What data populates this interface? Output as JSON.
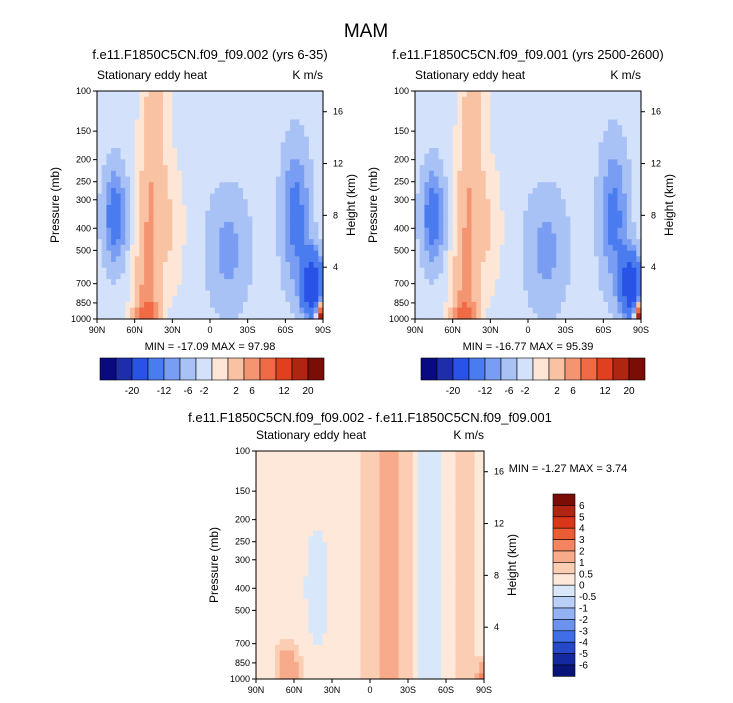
{
  "figure": {
    "title": "MAM"
  },
  "colors": {
    "top_scale": [
      "#0a0a80",
      "#1e2eaa",
      "#2853e6",
      "#4a7cf0",
      "#789df2",
      "#a9c2f5",
      "#d3e2fa",
      "#fde6d6",
      "#f9c2a3",
      "#f49572",
      "#ef6a45",
      "#e0401e",
      "#b02412",
      "#7a0d05"
    ],
    "diff_scale": [
      "#7a0d05",
      "#b02412",
      "#d9361a",
      "#ec5c33",
      "#f48560",
      "#f7ab8a",
      "#fbcdb3",
      "#fde8d9",
      "#d9e7fb",
      "#b9cff7",
      "#92b2f3",
      "#6a93f0",
      "#3f6ee8",
      "#2548c8",
      "#1428a0",
      "#081478"
    ]
  },
  "chart_data": [
    {
      "type": "heatmap",
      "title": "f.e11.F1850C5CN.f09_f09.002 (yrs 6-35)",
      "left_label": "Stationary eddy heat",
      "right_label": "K m/s",
      "xlabel": "",
      "ylabel": "Pressure (mb)",
      "ylabel_right": "Height (km)",
      "x_ticks": [
        "90N",
        "60N",
        "30N",
        "0",
        "30S",
        "60S",
        "90S"
      ],
      "y_ticks": [
        "100",
        "150",
        "200",
        "250",
        "300",
        "400",
        "500",
        "700",
        "850",
        "1000"
      ],
      "y_right_ticks": [
        "16",
        "12",
        "8",
        "4"
      ],
      "min": -17.09,
      "max": 97.98,
      "minmax_text": "MIN = -17.09   MAX =  97.98",
      "colorbar_labels": [
        "-20",
        "-12",
        "-6",
        "-2",
        "2",
        "6",
        "12",
        "20"
      ]
    },
    {
      "type": "heatmap",
      "title": "f.e11.F1850C5CN.f09_f09.001 (yrs 2500-2600)",
      "left_label": "Stationary eddy heat",
      "right_label": "K m/s",
      "xlabel": "",
      "ylabel": "Pressure (mb)",
      "ylabel_right": "Height (km)",
      "x_ticks": [
        "90N",
        "60N",
        "30N",
        "0",
        "30S",
        "60S",
        "90S"
      ],
      "y_ticks": [
        "100",
        "150",
        "200",
        "250",
        "300",
        "400",
        "500",
        "700",
        "850",
        "1000"
      ],
      "y_right_ticks": [
        "16",
        "12",
        "8",
        "4"
      ],
      "min": -16.77,
      "max": 95.39,
      "minmax_text": "MIN = -16.77   MAX =  95.39",
      "colorbar_labels": [
        "-20",
        "-12",
        "-6",
        "-2",
        "2",
        "6",
        "12",
        "20"
      ]
    },
    {
      "type": "heatmap",
      "title": "f.e11.F1850C5CN.f09_f09.002 - f.e11.F1850C5CN.f09_f09.001",
      "left_label": "Stationary eddy heat",
      "right_label": "K m/s",
      "xlabel": "",
      "ylabel": "Pressure (mb)",
      "ylabel_right": "Height (km)",
      "x_ticks": [
        "90N",
        "60N",
        "30N",
        "0",
        "30S",
        "60S",
        "90S"
      ],
      "y_ticks": [
        "100",
        "150",
        "200",
        "250",
        "300",
        "400",
        "500",
        "700",
        "850",
        "1000"
      ],
      "y_right_ticks": [
        "16",
        "12",
        "8",
        "4"
      ],
      "min": -1.27,
      "max": 3.74,
      "minmax_text": "MIN = -1.27   MAX =  3.74",
      "colorbar_labels": [
        "6",
        "5",
        "4",
        "3",
        "2",
        "1",
        "0.5",
        "0",
        "-0.5",
        "-1",
        "-2",
        "-3",
        "-4",
        "-5",
        "-6"
      ]
    }
  ]
}
